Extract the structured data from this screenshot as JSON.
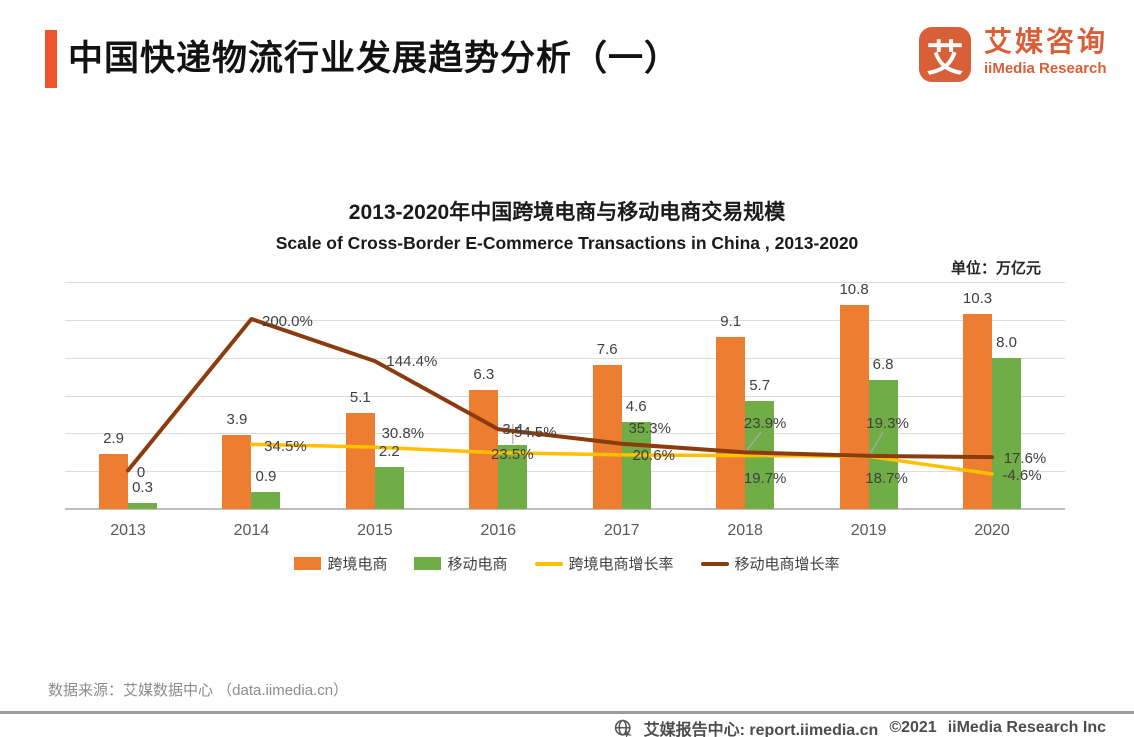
{
  "header": {
    "title": "中国快递物流行业发展趋势分析（一）",
    "logo": {
      "mark": "艾",
      "cn": "艾媒咨询",
      "en": "iiMedia Research"
    }
  },
  "chart_data": {
    "type": "bar",
    "overlay": "line",
    "title": "2013-2020年中国跨境电商与移动电商交易规模",
    "subtitle": "Scale of Cross-Border E-Commerce Transactions in China , 2013-2020",
    "unit": "单位：万亿元",
    "categories": [
      "2013",
      "2014",
      "2015",
      "2016",
      "2017",
      "2018",
      "2019",
      "2020"
    ],
    "series": [
      {
        "name": "跨境电商",
        "kind": "bar",
        "color": "#ED7D31",
        "values": [
          2.9,
          3.9,
          5.1,
          6.3,
          7.6,
          9.1,
          10.8,
          10.3
        ]
      },
      {
        "name": "移动电商",
        "kind": "bar",
        "color": "#70AD47",
        "values": [
          0.3,
          0.9,
          2.2,
          3.4,
          4.6,
          5.7,
          6.8,
          8.0
        ]
      },
      {
        "name": "跨境电商增长率",
        "kind": "line",
        "color": "#FFC000",
        "value_unit": "%",
        "values": [
          null,
          34.5,
          30.8,
          23.5,
          20.6,
          19.7,
          18.7,
          -4.6
        ],
        "labels": [
          null,
          "34.5%",
          "30.8%",
          "23.5%",
          "20.6%",
          "19.7%",
          "18.7%",
          "-4.6%"
        ]
      },
      {
        "name": "移动电商增长率",
        "kind": "line",
        "color": "#8B3C0F",
        "value_unit": "%",
        "values": [
          0,
          200.0,
          144.4,
          54.5,
          35.3,
          23.9,
          19.3,
          17.6
        ],
        "labels": [
          "0",
          "200.0%",
          "144.4%",
          "54.5%",
          "35.3%",
          "23.9%",
          "19.3%",
          "17.6%"
        ]
      }
    ],
    "bar_axis_max": 12,
    "pct_axis_range": [
      -50,
      250
    ],
    "grid": true,
    "legend_position": "bottom"
  },
  "footer": {
    "source": "数据来源：艾媒数据中心 （data.iimedia.cn）",
    "report_center": "艾媒报告中心: report.iimedia.cn",
    "copyright": "©2021",
    "company": "iiMedia Research Inc"
  }
}
